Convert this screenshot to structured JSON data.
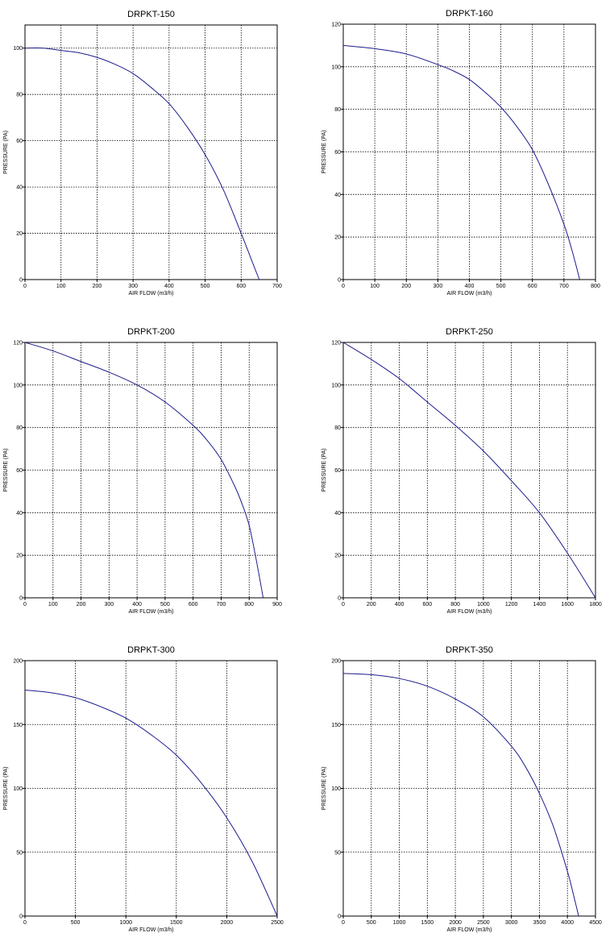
{
  "chart_data": [
    {
      "type": "line",
      "title": "DRPKT-150",
      "xlabel": "AIR FLOW (m3/h)",
      "ylabel": "PRESSURE (PA)",
      "xlim": [
        0,
        700
      ],
      "ylim": [
        0,
        110
      ],
      "xticks": [
        0,
        100,
        200,
        300,
        400,
        500,
        600,
        700
      ],
      "yticks": [
        0,
        20,
        40,
        60,
        80,
        100
      ],
      "grid": true,
      "series": [
        {
          "color": "#1c1c8c",
          "x": [
            0,
            50,
            100,
            150,
            200,
            250,
            300,
            350,
            400,
            450,
            500,
            550,
            600,
            625,
            650
          ],
          "y": [
            100,
            100,
            99,
            98,
            96,
            93,
            89,
            83,
            76,
            66,
            54,
            39,
            20,
            10,
            0
          ]
        }
      ]
    },
    {
      "type": "line",
      "title": "DRPKT-160",
      "xlabel": "AIR FLOW (m3/h)",
      "ylabel": "PRESSURE (PA)",
      "xlim": [
        0,
        800
      ],
      "ylim": [
        0,
        120
      ],
      "xticks": [
        0,
        100,
        200,
        300,
        400,
        500,
        600,
        700,
        800
      ],
      "yticks": [
        0,
        20,
        40,
        60,
        80,
        100,
        120
      ],
      "grid": true,
      "series": [
        {
          "color": "#1c1c8c",
          "x": [
            0,
            100,
            200,
            300,
            350,
            400,
            450,
            500,
            550,
            600,
            650,
            700,
            725,
            750
          ],
          "y": [
            110,
            108.5,
            106,
            101,
            98,
            94,
            88,
            81,
            72,
            61,
            45,
            26,
            14,
            0
          ]
        }
      ]
    },
    {
      "type": "line",
      "title": "DRPKT-200",
      "xlabel": "AIR FLOW (m3/h)",
      "ylabel": "PRESSURE (PA)",
      "xlim": [
        0,
        900
      ],
      "ylim": [
        0,
        120
      ],
      "xticks": [
        0,
        100,
        200,
        300,
        400,
        500,
        600,
        700,
        800,
        900
      ],
      "yticks": [
        0,
        20,
        40,
        60,
        80,
        100,
        120
      ],
      "grid": true,
      "series": [
        {
          "color": "#1c1c8c",
          "x": [
            0,
            100,
            200,
            300,
            400,
            500,
            600,
            650,
            700,
            750,
            775,
            800,
            825,
            850
          ],
          "y": [
            120,
            116,
            111,
            106,
            100,
            92,
            81,
            74,
            65,
            52,
            44,
            34,
            18,
            0
          ]
        }
      ]
    },
    {
      "type": "line",
      "title": "DRPKT-250",
      "xlabel": "AIR FLOW (m3/h)",
      "ylabel": "PRESSURE (PA)",
      "xlim": [
        0,
        1800
      ],
      "ylim": [
        0,
        120
      ],
      "xticks": [
        0,
        200,
        400,
        600,
        800,
        1000,
        1200,
        1400,
        1600,
        1800
      ],
      "yticks": [
        0,
        20,
        40,
        60,
        80,
        100,
        120
      ],
      "grid": true,
      "series": [
        {
          "color": "#1c1c8c",
          "x": [
            0,
            200,
            400,
            600,
            800,
            1000,
            1200,
            1400,
            1600,
            1800
          ],
          "y": [
            120,
            112,
            103,
            92,
            81,
            69,
            55,
            40,
            21,
            0
          ]
        }
      ]
    },
    {
      "type": "line",
      "title": "DRPKT-300",
      "xlabel": "AIR FLOW (m3/h)",
      "ylabel": "PRESSURE (PA)",
      "xlim": [
        0,
        2500
      ],
      "ylim": [
        0,
        200
      ],
      "xticks": [
        0,
        500,
        1000,
        1500,
        2000,
        2500
      ],
      "yticks": [
        0,
        50,
        100,
        150,
        200
      ],
      "grid": true,
      "series": [
        {
          "color": "#1c1c8c",
          "x": [
            0,
            250,
            500,
            750,
            1000,
            1250,
            1500,
            1750,
            2000,
            2250,
            2500
          ],
          "y": [
            177,
            175,
            171,
            164,
            155,
            142,
            126,
            104,
            77,
            43,
            0
          ]
        }
      ]
    },
    {
      "type": "line",
      "title": "DRPKT-350",
      "xlabel": "AIR FLOW (m3/h)",
      "ylabel": "PRESSURE (PA)",
      "xlim": [
        0,
        4500
      ],
      "ylim": [
        0,
        200
      ],
      "xticks": [
        0,
        500,
        1000,
        1500,
        2000,
        2500,
        3000,
        3500,
        4000,
        4500
      ],
      "yticks": [
        0,
        50,
        100,
        150,
        200
      ],
      "grid": true,
      "series": [
        {
          "color": "#1c1c8c",
          "x": [
            0,
            500,
            1000,
            1500,
            2000,
            2500,
            3000,
            3250,
            3500,
            3750,
            4000,
            4100,
            4200
          ],
          "y": [
            190,
            189,
            186,
            180,
            170,
            156,
            133,
            117,
            96,
            70,
            35,
            18,
            0
          ]
        }
      ]
    }
  ]
}
